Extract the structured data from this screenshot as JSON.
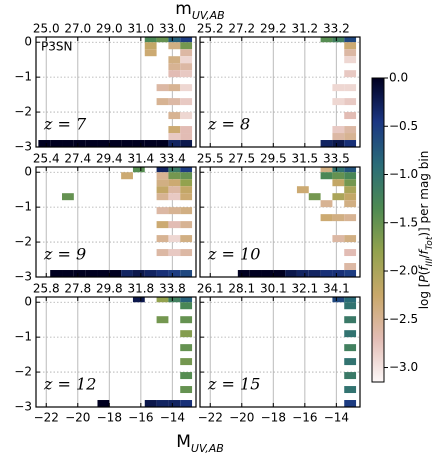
{
  "chart_data": {
    "type": "heatmap",
    "top_axis_label": {
      "main": "m",
      "sub": "UV,AB"
    },
    "x_axis_label": {
      "main": "M",
      "sub": "UV,AB"
    },
    "annotation": "P3SN",
    "xlim": [
      -22.65,
      -12.5
    ],
    "ylim": [
      -3,
      0.15
    ],
    "xticks": [
      {
        "value": -22,
        "label": "−22"
      },
      {
        "value": -20,
        "label": "−20"
      },
      {
        "value": -18,
        "label": "−18"
      },
      {
        "value": -16,
        "label": "−16"
      },
      {
        "value": -14,
        "label": "−14"
      }
    ],
    "yticks": [
      0,
      {
        "value": -1,
        "label": "−1"
      },
      {
        "value": -2,
        "label": "−2"
      },
      {
        "value": -3,
        "label": "−3"
      }
    ],
    "grid": true,
    "bin_width": 0.75,
    "bin_height": 0.2,
    "colormap": [
      "#fdf8f8",
      "#e2bcb4",
      "#c9a86a",
      "#93a24e",
      "#4e8a52",
      "#2a6c78",
      "#1b3682",
      "#000020"
    ],
    "clim": [
      -3.15,
      0
    ],
    "colorbar": {
      "label_parts": [
        "log [",
        "P",
        "(",
        "f",
        "III",
        "/",
        "f",
        "Tot",
        ")] per mag bin"
      ],
      "ticks": [
        {
          "value": 0,
          "label": "0.0"
        },
        {
          "value": -0.5,
          "label": "−0.5"
        },
        {
          "value": -1,
          "label": "−1.0"
        },
        {
          "value": -1.5,
          "label": "−1.5"
        },
        {
          "value": -2,
          "label": "−2.0"
        },
        {
          "value": -2.5,
          "label": "−2.5"
        },
        {
          "value": -3,
          "label": "−3.0"
        }
      ]
    },
    "panels": [
      {
        "label": "z = 7",
        "x2lim": [
          24.35,
          34.5
        ],
        "x2ticks": [
          {
            "value": 25,
            "label": "25.0"
          },
          {
            "value": 27,
            "label": "27.0"
          },
          {
            "value": 29,
            "label": "29.0"
          },
          {
            "value": 31,
            "label": "31.0"
          },
          {
            "value": 33,
            "label": "33.0"
          }
        ],
        "cells": [
          [
            -15.75,
            0,
            -1.3
          ],
          [
            -15,
            0,
            -1.5
          ],
          [
            -14.25,
            0,
            -0.8
          ],
          [
            -13.5,
            0,
            -0.5
          ],
          [
            -15.75,
            -0.2,
            -2.2
          ],
          [
            -14.25,
            -0.2,
            -2.4
          ],
          [
            -13.5,
            -0.2,
            -1.6
          ],
          [
            -15.75,
            -0.4,
            -2.3
          ],
          [
            -13.5,
            -0.4,
            -2.6
          ],
          [
            -14.25,
            -0.6,
            -2.4
          ],
          [
            -13.5,
            -0.6,
            -2.9
          ],
          [
            -14.25,
            -0.8,
            -2.5
          ],
          [
            -13.5,
            -0.8,
            -2.6
          ],
          [
            -14.25,
            -1,
            -2.7
          ],
          [
            -13.5,
            -1,
            -2.8
          ],
          [
            -15,
            -1.4,
            -2.6
          ],
          [
            -14.25,
            -1.4,
            -2.5
          ],
          [
            -13.5,
            -1.4,
            -2.9
          ],
          [
            -15,
            -1.8,
            -2.5
          ],
          [
            -14.25,
            -1.8,
            -2.6
          ],
          [
            -13.5,
            -1.8,
            -2.8
          ],
          [
            -14.25,
            -2.2,
            -2.5
          ],
          [
            -13.5,
            -2.2,
            -2.9
          ],
          [
            -14.25,
            -2.6,
            -2.3
          ],
          [
            -13.5,
            -2.6,
            -2.7
          ],
          [
            -14.25,
            -2.8,
            -2.8
          ],
          [
            -13.5,
            -2.8,
            -2.7
          ],
          [
            -22.5,
            -3,
            0
          ],
          [
            -21.75,
            -3,
            0
          ],
          [
            -21,
            -3,
            0
          ],
          [
            -20.25,
            -3,
            0
          ],
          [
            -19.5,
            -3,
            0
          ],
          [
            -18.75,
            -3,
            0
          ],
          [
            -18,
            -3,
            0
          ],
          [
            -17.25,
            -3,
            0
          ],
          [
            -16.5,
            -3,
            0
          ],
          [
            -15.75,
            -3,
            0
          ],
          [
            -15,
            -3,
            0
          ],
          [
            -14.25,
            -3,
            -0.3
          ],
          [
            -13.5,
            -3,
            -0.2
          ]
        ]
      },
      {
        "label": "z = 8",
        "x2lim": [
          24.55,
          34.7
        ],
        "x2ticks": [
          25.2,
          27.2,
          29.2,
          31.2,
          33.2
        ],
        "cells": [
          [
            -15,
            0,
            -1.4
          ],
          [
            -14.25,
            0,
            -1.2
          ],
          [
            -13.5,
            0,
            -0.6
          ],
          [
            -13.5,
            -0.2,
            -2.3
          ],
          [
            -13.5,
            -0.4,
            -2.6
          ],
          [
            -13.5,
            -0.6,
            -2.9
          ],
          [
            -13.5,
            -1,
            -2.8
          ],
          [
            -14.25,
            -1.4,
            -2.9
          ],
          [
            -13.5,
            -1.4,
            -2.9
          ],
          [
            -14.25,
            -1.8,
            -2.9
          ],
          [
            -13.5,
            -1.8,
            -2.8
          ],
          [
            -13.5,
            -2.2,
            -2.7
          ],
          [
            -14.25,
            -2.6,
            -2.8
          ],
          [
            -13.5,
            -2.6,
            -2.6
          ],
          [
            -14.25,
            -2.8,
            -2.6
          ],
          [
            -13.5,
            -2.8,
            -2.5
          ],
          [
            -15,
            -3,
            -0.3
          ],
          [
            -14.25,
            -3,
            -0.2
          ],
          [
            -13.5,
            -3,
            -0.4
          ]
        ]
      },
      {
        "label": "z = 9",
        "x2lim": [
          24.75,
          34.9
        ],
        "x2ticks": [
          25.4,
          27.4,
          29.4,
          31.4,
          33.4
        ],
        "cells": [
          [
            -16.5,
            0,
            -1.4
          ],
          [
            -15,
            0,
            -0.3
          ],
          [
            -14.25,
            0,
            -1.1
          ],
          [
            -13.5,
            0,
            -0.5
          ],
          [
            -17.25,
            -0.2,
            -2.3
          ],
          [
            -15,
            -0.2,
            -2.5
          ],
          [
            -14.25,
            -0.2,
            -1.6
          ],
          [
            -13.5,
            -0.2,
            -1.5
          ],
          [
            -15,
            -0.4,
            -2.4
          ],
          [
            -14.25,
            -0.4,
            -2.3
          ],
          [
            -13.5,
            -0.4,
            -1.8
          ],
          [
            -15,
            -0.6,
            -2.2
          ],
          [
            -14.25,
            -0.6,
            -2.6
          ],
          [
            -13.5,
            -0.6,
            -2.2
          ],
          [
            -21,
            -0.8,
            -1.5
          ],
          [
            -15,
            -0.8,
            -2.5
          ],
          [
            -14.25,
            -0.8,
            -2.8
          ],
          [
            -13.5,
            -0.8,
            -2.3
          ],
          [
            -15,
            -1.2,
            -2.6
          ],
          [
            -14.25,
            -1.2,
            -2.5
          ],
          [
            -13.5,
            -1.2,
            -2.4
          ],
          [
            -15,
            -1.6,
            -2.3
          ],
          [
            -14.25,
            -1.6,
            -2.7
          ],
          [
            -13.5,
            -1.6,
            -2.5
          ],
          [
            -15,
            -2,
            -2.5
          ],
          [
            -14.25,
            -2,
            -2.9
          ],
          [
            -13.5,
            -2,
            -2.4
          ],
          [
            -15,
            -2.4,
            -2.6
          ],
          [
            -14.25,
            -2.4,
            -2.8
          ],
          [
            -13.5,
            -2.4,
            -2.6
          ],
          [
            -21.75,
            -3,
            0
          ],
          [
            -21,
            -3,
            0
          ],
          [
            -20.25,
            -3,
            0
          ],
          [
            -19.5,
            -3,
            0
          ],
          [
            -18.75,
            -3,
            0
          ],
          [
            -18,
            -3,
            0
          ],
          [
            -17.25,
            -3,
            -0.3
          ],
          [
            -16.5,
            -3,
            -0.2
          ],
          [
            -15.75,
            -3,
            -0.3
          ],
          [
            -15,
            -3,
            -0.4
          ],
          [
            -14.25,
            -3,
            -0.5
          ],
          [
            -13.5,
            -3,
            -0.6
          ]
        ]
      },
      {
        "label": "z = 10",
        "x2lim": [
          24.85,
          35
        ],
        "x2ticks": [
          25.5,
          27.5,
          29.5,
          31.5,
          33.5
        ],
        "cells": [
          [
            -15,
            0,
            -2.4
          ],
          [
            -14.25,
            0,
            -1
          ],
          [
            -13.5,
            0,
            -0.7
          ],
          [
            -15,
            -0.2,
            -1.3
          ],
          [
            -14.25,
            -0.2,
            -1.5
          ],
          [
            -13.5,
            -0.2,
            -1.3
          ],
          [
            -14.25,
            -0.4,
            -2.2
          ],
          [
            -13.5,
            -0.4,
            -1.6
          ],
          [
            -16.5,
            -0.6,
            -2.3
          ],
          [
            -13.5,
            -0.6,
            -2
          ],
          [
            -15.75,
            -0.8,
            -1.6
          ],
          [
            -14.25,
            -0.8,
            -2
          ],
          [
            -13.5,
            -0.8,
            -2.2
          ],
          [
            -15,
            -1,
            -2.5
          ],
          [
            -13.5,
            -1,
            -2.4
          ],
          [
            -15,
            -1.4,
            -2.3
          ],
          [
            -14.25,
            -1.4,
            -2.4
          ],
          [
            -13.5,
            -1.4,
            -2.5
          ],
          [
            -14.25,
            -2,
            -2.6
          ],
          [
            -13.5,
            -2,
            -2.4
          ],
          [
            -13.5,
            -2.4,
            -2.7
          ],
          [
            -13.5,
            -2.8,
            -2.6
          ],
          [
            -20.25,
            -3,
            0
          ],
          [
            -19.5,
            -3,
            0
          ],
          [
            -18.75,
            -3,
            0
          ],
          [
            -18,
            -3,
            0
          ],
          [
            -17.25,
            -3,
            -0.2
          ],
          [
            -16.5,
            -3,
            -0.3
          ],
          [
            -15.75,
            -3,
            -0.3
          ],
          [
            -15,
            -3,
            -0.4
          ],
          [
            -14.25,
            -3,
            -0.4
          ],
          [
            -13.5,
            -3,
            -0.5
          ]
        ]
      },
      {
        "label": "z = 12",
        "x2lim": [
          25.15,
          35.3
        ],
        "x2ticks": [
          25.8,
          27.8,
          29.8,
          31.8,
          33.8
        ],
        "cells": [
          [
            -16.5,
            0,
            -0.2
          ],
          [
            -15,
            0,
            -1.8
          ],
          [
            -14.25,
            0,
            -1.2
          ],
          [
            -13.5,
            0,
            -0.8
          ],
          [
            -13.5,
            -0.2,
            -1.3
          ],
          [
            -15,
            -0.6,
            -1.6
          ],
          [
            -13.5,
            -0.6,
            -1.5
          ],
          [
            -13.5,
            -1,
            -1.7
          ],
          [
            -13.5,
            -1.4,
            -1.5
          ],
          [
            -13.5,
            -1.8,
            -1.6
          ],
          [
            -13.5,
            -2.2,
            -1.4
          ],
          [
            -13.5,
            -2.6,
            -1.5
          ],
          [
            -18.75,
            -3,
            0
          ],
          [
            -15.75,
            -3,
            -0.2
          ],
          [
            -15,
            -3,
            -0.3
          ],
          [
            -14.25,
            -3,
            -0.3
          ],
          [
            -13.5,
            -3,
            -0.4
          ]
        ]
      },
      {
        "label": "z = 15",
        "x2lim": [
          25.45,
          35.6
        ],
        "x2ticks": [
          26.1,
          28.1,
          30.1,
          32.1,
          34.1
        ],
        "cells": [
          [
            -14.25,
            0,
            -0.6
          ],
          [
            -13.5,
            0,
            -0.9
          ],
          [
            -13.5,
            -0.2,
            -1
          ],
          [
            -13.5,
            -0.6,
            -1.1
          ],
          [
            -13.5,
            -1,
            -1
          ],
          [
            -13.5,
            -1.4,
            -1.2
          ],
          [
            -13.5,
            -1.8,
            -1
          ],
          [
            -13.5,
            -2.2,
            -1.1
          ],
          [
            -13.5,
            -2.6,
            -1
          ],
          [
            -13.5,
            -3,
            -0.5
          ]
        ]
      }
    ]
  }
}
